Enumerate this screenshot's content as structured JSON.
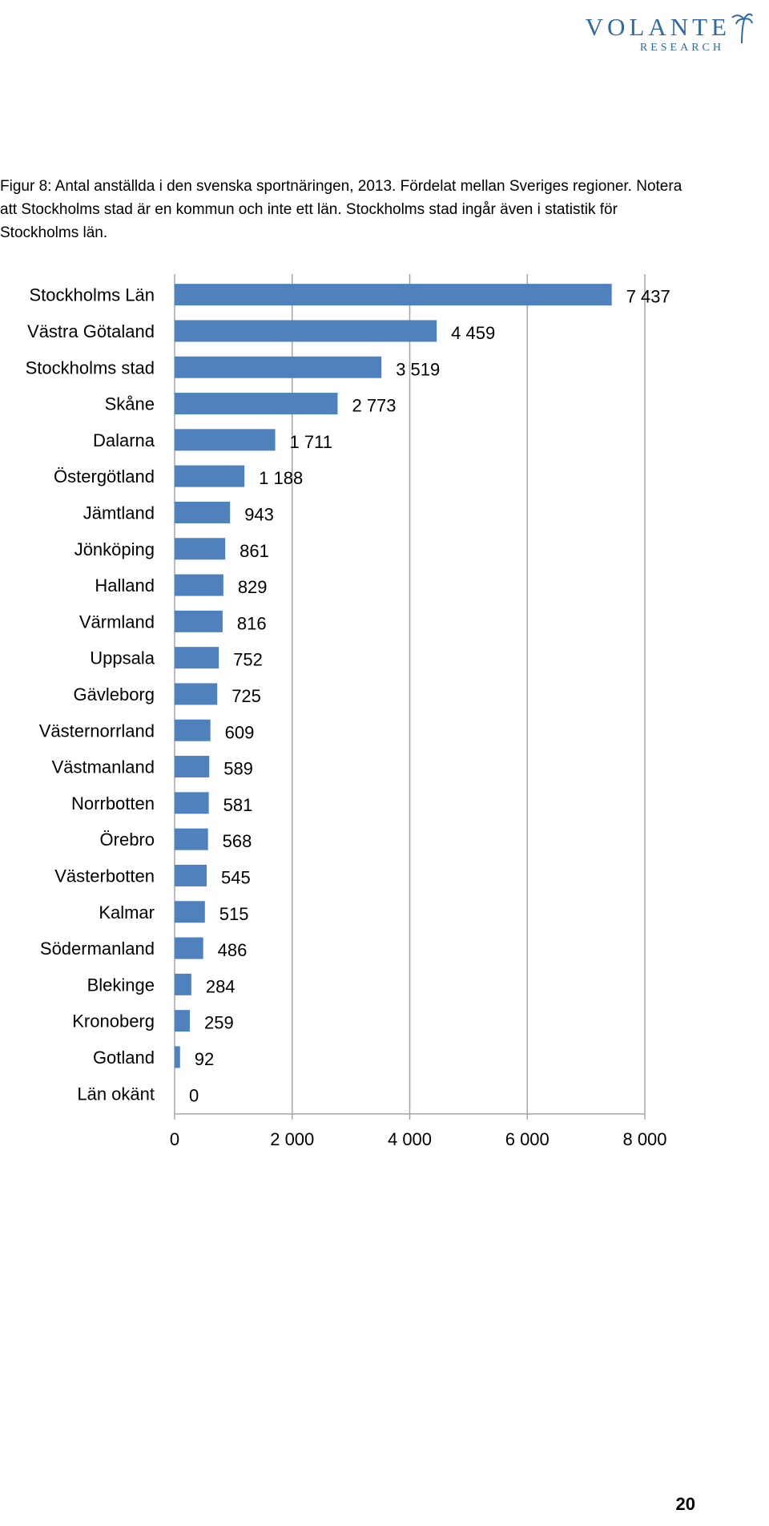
{
  "logo": {
    "main": "VOLANTE",
    "sub": "RESEARCH"
  },
  "caption": "Figur 8: Antal anställda i den svenska sportnäringen, 2013. Fördelat mellan Sveriges regioner. Notera att Stockholms stad är en kommun och inte ett län. Stockholms stad ingår även i statistik för Stockholms län.",
  "page_number": "20",
  "colors": {
    "bar": "#4f81bd",
    "gridline": "#a6a6a6",
    "logo": "#2f6aa5"
  },
  "chart_data": {
    "type": "bar",
    "orientation": "horizontal",
    "title": "",
    "xlabel": "",
    "ylabel": "",
    "xlim": [
      0,
      8000
    ],
    "x_ticks": [
      0,
      2000,
      4000,
      6000,
      8000
    ],
    "x_tick_labels": [
      "0",
      "2 000",
      "4 000",
      "6 000",
      "8 000"
    ],
    "grid": "vertical",
    "categories": [
      "Stockholms Län",
      "Västra Götaland",
      "Stockholms stad",
      "Skåne",
      "Dalarna",
      "Östergötland",
      "Jämtland",
      "Jönköping",
      "Halland",
      "Värmland",
      "Uppsala",
      "Gävleborg",
      "Västernorrland",
      "Västmanland",
      "Norrbotten",
      "Örebro",
      "Västerbotten",
      "Kalmar",
      "Södermanland",
      "Blekinge",
      "Kronoberg",
      "Gotland",
      "Län okänt"
    ],
    "values": [
      7437,
      4459,
      3519,
      2773,
      1711,
      1188,
      943,
      861,
      829,
      816,
      752,
      725,
      609,
      589,
      581,
      568,
      545,
      515,
      486,
      284,
      259,
      92,
      0
    ],
    "value_labels": [
      "7 437",
      "4 459",
      "3 519",
      "2 773",
      "1 711",
      "1 188",
      "943",
      "861",
      "829",
      "816",
      "752",
      "725",
      "609",
      "589",
      "581",
      "568",
      "545",
      "515",
      "486",
      "284",
      "259",
      "92",
      "0"
    ]
  }
}
